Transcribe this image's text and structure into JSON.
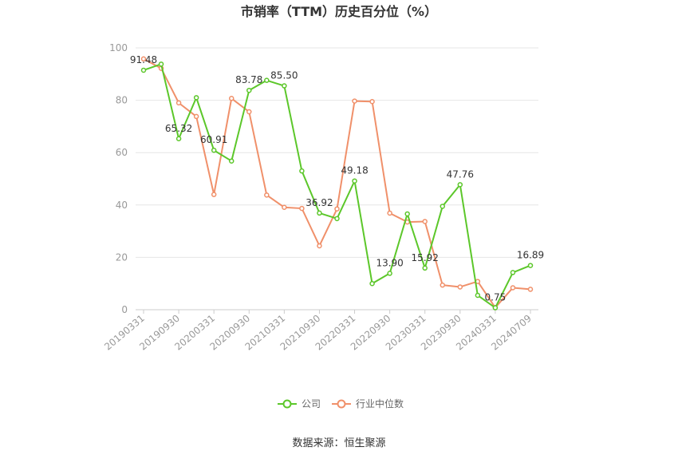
{
  "chart_data": {
    "type": "line",
    "title": "市销率（TTM）历史百分位（%）",
    "source": "数据来源：恒生聚源",
    "ylim": [
      0,
      100
    ],
    "yticks": [
      0,
      20,
      40,
      60,
      80,
      100
    ],
    "grid": true,
    "legend_position": "bottom",
    "x": [
      "20190331",
      "20190630",
      "20190930",
      "20191231",
      "20200331",
      "20200630",
      "20200930",
      "20201231",
      "20210331",
      "20210630",
      "20210930",
      "20211231",
      "20220331",
      "20220630",
      "20220930",
      "20221231",
      "20230331",
      "20230630",
      "20230930",
      "20231231",
      "20240331",
      "20240630",
      "20240709"
    ],
    "xtick_labels": [
      "20190331",
      "20190930",
      "20200331",
      "20200930",
      "20210331",
      "20210930",
      "20220331",
      "20220930",
      "20230331",
      "20230930",
      "20240331",
      "20240709"
    ],
    "series": [
      {
        "name": "公司",
        "color": "#5cc72a",
        "values": [
          91.48,
          93.8,
          65.32,
          81.0,
          60.91,
          56.8,
          83.78,
          87.6,
          85.5,
          53.0,
          36.92,
          34.8,
          49.18,
          10.0,
          13.9,
          36.6,
          15.92,
          39.5,
          47.76,
          5.5,
          0.75,
          14.2,
          16.89
        ]
      },
      {
        "name": "行业中位数",
        "color": "#f0906a",
        "values": [
          95.8,
          92.2,
          79.0,
          73.8,
          44.0,
          80.7,
          75.6,
          43.8,
          39.1,
          38.7,
          24.4,
          38.5,
          79.7,
          79.5,
          36.9,
          33.5,
          33.7,
          9.4,
          8.7,
          10.8,
          0.8,
          8.4,
          7.8
        ]
      }
    ],
    "annotations": [
      {
        "series": 0,
        "index": 0,
        "text": "91.48"
      },
      {
        "series": 0,
        "index": 2,
        "text": "65.32"
      },
      {
        "series": 0,
        "index": 4,
        "text": "60.91"
      },
      {
        "series": 0,
        "index": 6,
        "text": "83.78"
      },
      {
        "series": 0,
        "index": 8,
        "text": "85.50"
      },
      {
        "series": 0,
        "index": 10,
        "text": "36.92"
      },
      {
        "series": 0,
        "index": 12,
        "text": "49.18"
      },
      {
        "series": 0,
        "index": 14,
        "text": "13.90"
      },
      {
        "series": 0,
        "index": 16,
        "text": "15.92"
      },
      {
        "series": 0,
        "index": 18,
        "text": "47.76"
      },
      {
        "series": 0,
        "index": 20,
        "text": "0.75"
      },
      {
        "series": 0,
        "index": 22,
        "text": "16.89"
      }
    ]
  }
}
